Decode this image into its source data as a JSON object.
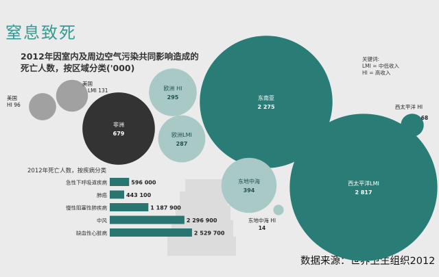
{
  "page": {
    "title": "窒息致死",
    "subtitle": "2012年因室内及周边空气污染共同影响造成的死亡人数，按区域分类('000)",
    "key_title": "关键词:",
    "key_lmi": "LMI = 中低收入",
    "key_hi": "HI = 高收入",
    "source": "数据来源：世界卫生组织2012"
  },
  "colors": {
    "background": "#ebebeb",
    "teal": "#2a7d77",
    "light_teal": "#a9c9c7",
    "gray": "#a1a1a1",
    "dark": "#333333",
    "bar": "#287571"
  },
  "chart_data": [
    {
      "type": "bubble",
      "title": "2012年因室内及周边空气污染共同影响造成的死亡人数，按区域分类('000)",
      "points": [
        {
          "region": "美国 HI",
          "name": "美国",
          "tag": "HI",
          "value": 96,
          "value_label": "96",
          "color": "gray",
          "label_pos": "outside"
        },
        {
          "region": "美国 LMI",
          "name": "美国",
          "tag": "LMI",
          "value": 131,
          "value_label": "131",
          "color": "gray",
          "label_pos": "outside"
        },
        {
          "region": "非洲",
          "name": "非洲",
          "tag": "",
          "value": 679,
          "value_label": "679",
          "color": "dark",
          "label_pos": "inside"
        },
        {
          "region": "欧洲HI",
          "name": "欧洲",
          "tag": "HI",
          "value": 295,
          "value_label": "295",
          "color": "light",
          "label_pos": "inside"
        },
        {
          "region": "欧洲LMI",
          "name": "欧洲",
          "tag": "LMI",
          "value": 287,
          "value_label": "287",
          "color": "light",
          "label_pos": "inside"
        },
        {
          "region": "东南亚",
          "name": "东南亚",
          "tag": "",
          "value": 2275,
          "value_label": "2 275",
          "color": "teal",
          "label_pos": "inside"
        },
        {
          "region": "东地中海",
          "name": "东地中海",
          "tag": "",
          "value": 394,
          "value_label": "394",
          "color": "light",
          "label_pos": "inside"
        },
        {
          "region": "东地中海 HI",
          "name": "东地中海",
          "tag": "HI",
          "value": 14,
          "value_label": "14",
          "color": "light",
          "label_pos": "outside"
        },
        {
          "region": "西太平洋LMI",
          "name": "西太平洋",
          "tag": "LMI",
          "value": 2817,
          "value_label": "2 817",
          "color": "teal",
          "label_pos": "inside"
        },
        {
          "region": "西太平洋 HI",
          "name": "西太平洋",
          "tag": "HI",
          "value": 68,
          "value_label": "68",
          "color": "teal",
          "label_pos": "outside"
        }
      ]
    },
    {
      "type": "bar",
      "orientation": "horizontal",
      "title": "2012年死亡人数，按疾病分类",
      "categories": [
        "急性下呼吸道疾病",
        "肺癌",
        "慢性阻塞性肺疾病",
        "中风",
        "缺血性心脏病"
      ],
      "values": [
        596000,
        443100,
        1187900,
        2296900,
        2529700
      ],
      "value_labels": [
        "596 000",
        "443 100",
        "1 187 900",
        "2 296 900",
        "2 529 700"
      ]
    }
  ]
}
